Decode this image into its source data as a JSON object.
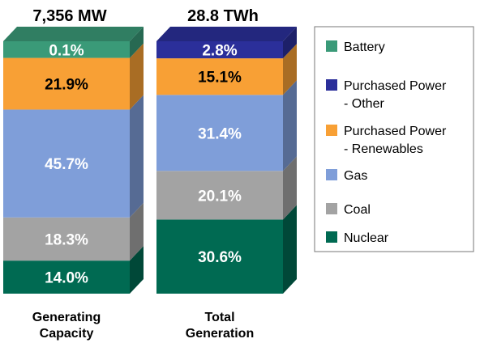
{
  "chart_data": {
    "type": "bar",
    "stacked": true,
    "categories": [
      "Generating\nCapacity",
      "Total\nGeneration"
    ],
    "totals": [
      "7,356 MW",
      "28.8 TWh"
    ],
    "series": [
      {
        "name": "Nuclear",
        "color": "#006a52",
        "values": [
          14.0,
          30.6
        ],
        "labels": [
          "14.0%",
          "30.6%"
        ]
      },
      {
        "name": "Coal",
        "color": "#a3a3a3",
        "values": [
          18.3,
          20.1
        ],
        "labels": [
          "18.3%",
          "20.1%"
        ]
      },
      {
        "name": "Gas",
        "color": "#7f9ed9",
        "values": [
          45.7,
          31.4
        ],
        "labels": [
          "45.7%",
          "31.4%"
        ]
      },
      {
        "name": "Purchased Power\n- Renewables",
        "color": "#f8a035",
        "values": [
          21.9,
          15.1
        ],
        "labels": [
          "21.9%",
          "15.1%"
        ]
      },
      {
        "name": "Purchased Power\n- Other",
        "color": "#2b2f9a",
        "values": [
          0.0,
          2.8
        ],
        "labels": [
          "",
          "2.8%"
        ]
      },
      {
        "name": "Battery",
        "color": "#3a9a78",
        "values": [
          0.1,
          0.0
        ],
        "labels": [
          "0.1%",
          ""
        ]
      }
    ],
    "legend_order": [
      "Battery",
      "Purchased Power\n- Other",
      "Purchased Power\n- Renewables",
      "Gas",
      "Coal",
      "Nuclear"
    ],
    "legend_position": "right",
    "grid": false
  }
}
